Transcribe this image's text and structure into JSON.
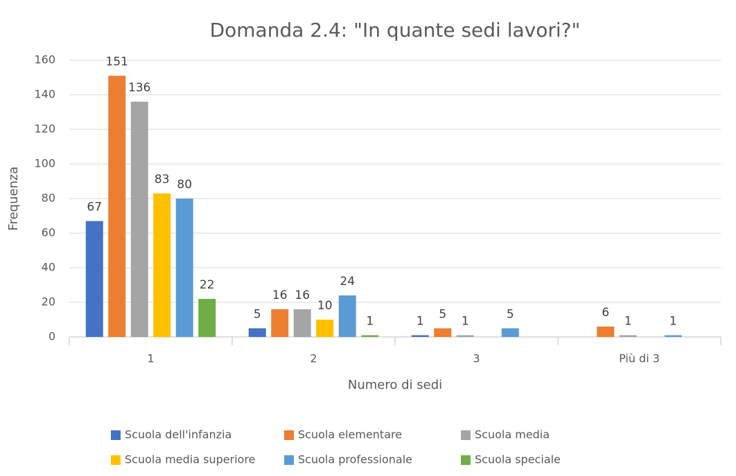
{
  "chart_data": {
    "type": "bar",
    "title": "Domanda 2.4: \"In quante sedi lavori?\"",
    "x_label": "Numero di sedi",
    "y_label": "Frequenza",
    "categories": [
      "1",
      "2",
      "3",
      "Più di 3"
    ],
    "series": [
      {
        "name": "Scuola dell'infanzia",
        "color": "#4472c4",
        "values": [
          67,
          5,
          1,
          null
        ]
      },
      {
        "name": "Scuola elementare",
        "color": "#ed7d31",
        "values": [
          151,
          16,
          5,
          6
        ]
      },
      {
        "name": "Scuola media",
        "color": "#a5a5a5",
        "values": [
          136,
          16,
          1,
          1
        ]
      },
      {
        "name": "Scuola media superiore",
        "color": "#ffc000",
        "values": [
          83,
          10,
          null,
          null
        ]
      },
      {
        "name": "Scuola professionale",
        "color": "#5b9bd5",
        "values": [
          80,
          24,
          5,
          1
        ]
      },
      {
        "name": "Scuola speciale",
        "color": "#70ad47",
        "values": [
          22,
          1,
          null,
          null
        ]
      }
    ],
    "ylim": [
      0,
      160
    ],
    "yticks": [
      0,
      20,
      40,
      60,
      80,
      100,
      120,
      140,
      160
    ],
    "grid": true,
    "legend": "bottom"
  }
}
